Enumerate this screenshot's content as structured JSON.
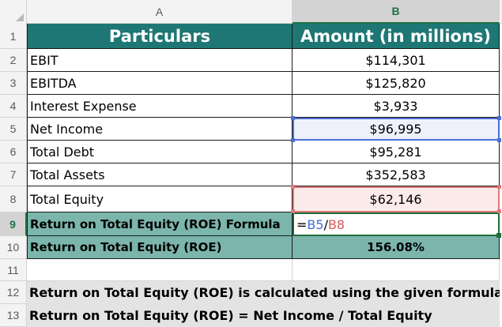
{
  "columns": {
    "a": "A",
    "b": "B"
  },
  "rows": [
    {
      "num": "1",
      "a": "Particulars",
      "b": "Amount (in millions)"
    },
    {
      "num": "2",
      "a": "EBIT",
      "b": "$114,301"
    },
    {
      "num": "3",
      "a": "EBITDA",
      "b": "$125,820"
    },
    {
      "num": "4",
      "a": "Interest Expense",
      "b": "$3,933"
    },
    {
      "num": "5",
      "a": "Net Income",
      "b": "$96,995"
    },
    {
      "num": "6",
      "a": "Total Debt",
      "b": "$95,281"
    },
    {
      "num": "7",
      "a": "Total Assets",
      "b": "$352,583"
    },
    {
      "num": "8",
      "a": "Total Equity",
      "b": "$62,146"
    },
    {
      "num": "9",
      "a": "Return on Total Equity (ROE) Formula",
      "b": ""
    },
    {
      "num": "10",
      "a": "Return on Total Equity (ROE)",
      "b": "156.08%"
    },
    {
      "num": "11",
      "a": "",
      "b": ""
    },
    {
      "num": "12",
      "a": "Return on Total Equity (ROE) is calculated using the given formula:",
      "b": ""
    },
    {
      "num": "13",
      "a": "Return on Total Equity (ROE) = Net Income / Total Equity",
      "b": ""
    }
  ],
  "formula": {
    "eq": "=",
    "ref1": "B5",
    "op": "/",
    "ref2": "B8"
  },
  "colors": {
    "header_bg": "#1e7774",
    "highlight_teal": "#7bb5ac",
    "ref_blue": "#3f6fd8",
    "ref_red": "#d65a5a",
    "active_green": "#217346"
  }
}
